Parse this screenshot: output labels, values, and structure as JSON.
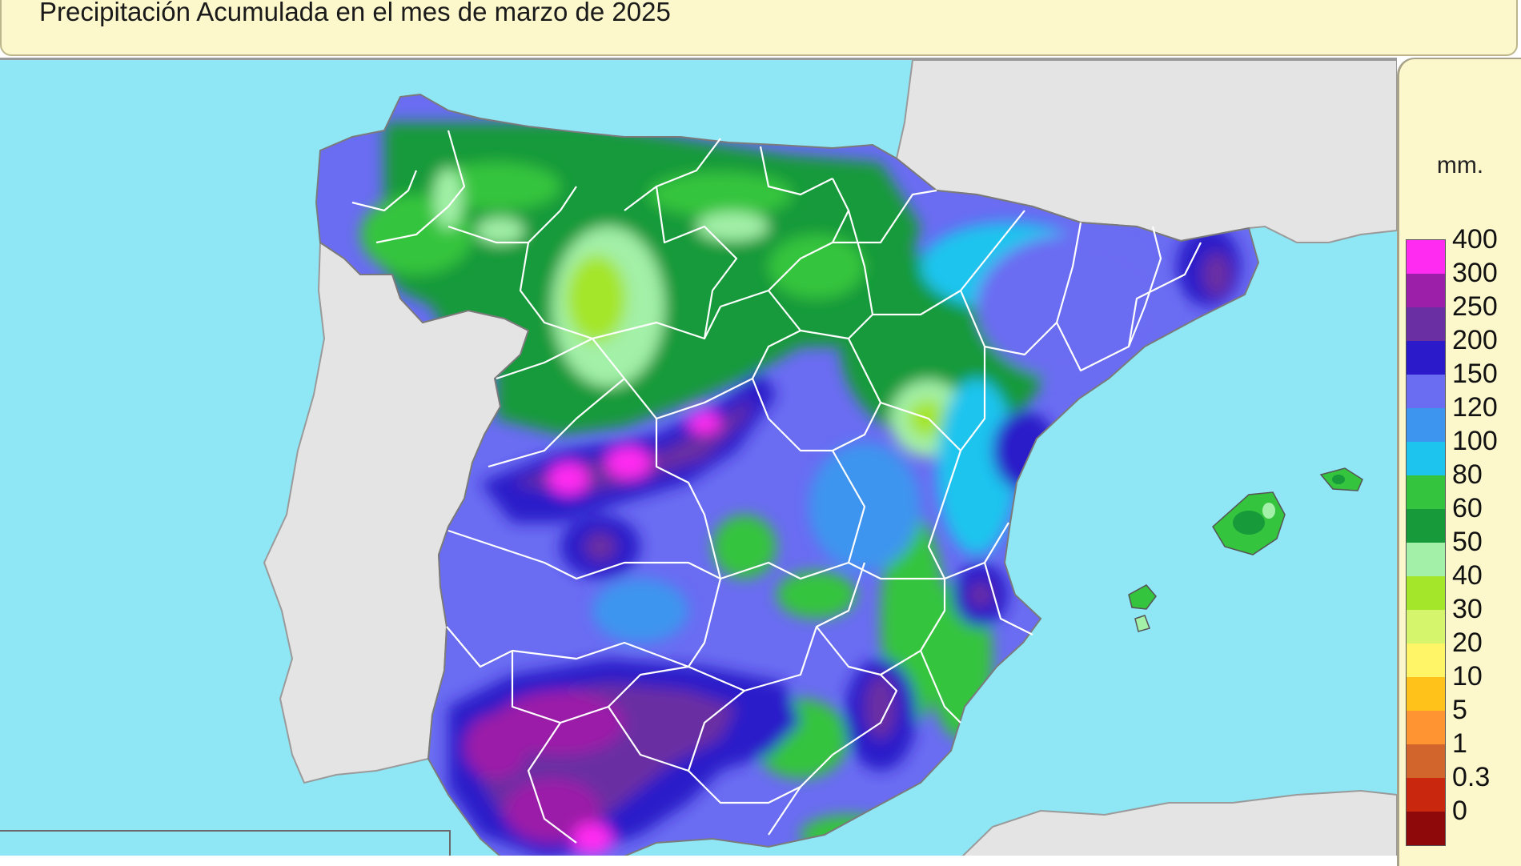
{
  "title": "Precipitación Acumulada en el mes de marzo de 2025",
  "legend": {
    "unit": "mm.",
    "classes": [
      {
        "label": "400",
        "color": "#ff2bf0"
      },
      {
        "label": "300",
        "color": "#9b1fa8"
      },
      {
        "label": "250",
        "color": "#6a2fa3"
      },
      {
        "label": "200",
        "color": "#2a1ac9"
      },
      {
        "label": "150",
        "color": "#6a6cf2"
      },
      {
        "label": "120",
        "color": "#3d95ef"
      },
      {
        "label": "100",
        "color": "#1dc4ee"
      },
      {
        "label": "80",
        "color": "#34c43e"
      },
      {
        "label": "60",
        "color": "#179a3a"
      },
      {
        "label": "50",
        "color": "#a3f0a8"
      },
      {
        "label": "40",
        "color": "#a4e629"
      },
      {
        "label": "30",
        "color": "#d5f56d"
      },
      {
        "label": "20",
        "color": "#fff566"
      },
      {
        "label": "10",
        "color": "#ffc21a"
      },
      {
        "label": "5",
        "color": "#ff9433"
      },
      {
        "label": "1",
        "color": "#d2652c"
      },
      {
        "label": "0.3",
        "color": "#c9280f"
      },
      {
        "label": "0",
        "color": "#8e0a0a"
      }
    ]
  },
  "map": {
    "sea_color": "#8fe6f5",
    "land_color": "#e4e4e4",
    "border_color": "#ffffff"
  }
}
